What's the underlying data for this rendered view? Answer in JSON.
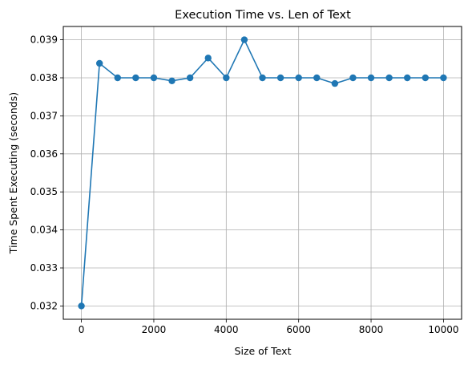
{
  "chart_data": {
    "type": "line",
    "title": "Execution Time vs. Len of Text",
    "xlabel": "Size of Text",
    "ylabel": "Time Spent Executing (seconds)",
    "xlim": [
      -500,
      10500
    ],
    "ylim": [
      0.03165,
      0.03935
    ],
    "xticks": [
      0,
      2000,
      4000,
      6000,
      8000,
      10000
    ],
    "yticks": [
      0.032,
      0.033,
      0.034,
      0.035,
      0.036,
      0.037,
      0.038,
      0.039
    ],
    "grid": true,
    "marker": "circle",
    "color": "#1f77b4",
    "series": [
      {
        "x": [
          0,
          500,
          1000,
          1500,
          2000,
          2500,
          3000,
          3500,
          4000,
          4500,
          5000,
          5500,
          6000,
          6500,
          7000,
          7500,
          8000,
          8500,
          9000,
          9500,
          10000
        ],
        "values": [
          0.032,
          0.03838,
          0.038,
          0.038,
          0.038,
          0.03792,
          0.038,
          0.03852,
          0.038,
          0.039,
          0.038,
          0.038,
          0.038,
          0.038,
          0.03785,
          0.038,
          0.038,
          0.038,
          0.038,
          0.038,
          0.038
        ]
      }
    ]
  }
}
